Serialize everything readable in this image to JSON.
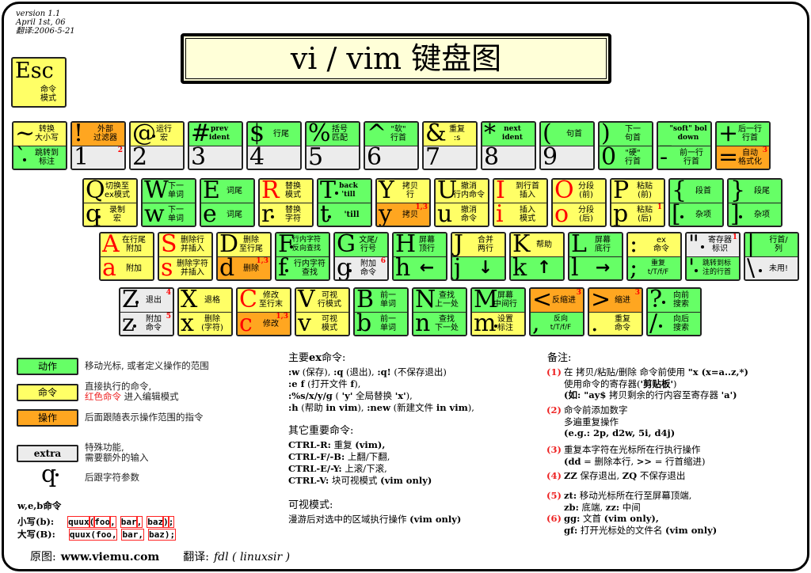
{
  "version": [
    "version 1.1",
    "April 1st, 06",
    "翻译:2006-5-21"
  ],
  "title": "vi / vim 键盘图",
  "colors": {
    "motion": "#66ff66",
    "command": "#ffff66",
    "operator": "#ffa620",
    "extra": "#ececec"
  },
  "esc": {
    "glyph": "Esc",
    "label": "命令\n模式",
    "color": "command"
  },
  "rows": [
    [
      {
        "upper": {
          "glyph": "~",
          "label": "转换\n大小写",
          "color": "command"
        },
        "lower": {
          "glyph": "`",
          "label": "跳转到\n标注",
          "color": "motion",
          "dot": true
        }
      },
      {
        "upper": {
          "glyph": "!",
          "label": "外部\n过滤器",
          "color": "operator"
        },
        "lower": {
          "glyph": "1",
          "label": "",
          "color": "extra",
          "note": "2"
        }
      },
      {
        "upper": {
          "glyph": "@",
          "label": "运行\n宏",
          "color": "command",
          "dot": true
        },
        "lower": {
          "glyph": "2",
          "label": "",
          "color": "extra"
        }
      },
      {
        "upper": {
          "glyph": "#",
          "label": "prev\nident",
          "color": "motion",
          "bold": true
        },
        "lower": {
          "glyph": "3",
          "label": "",
          "color": "extra"
        }
      },
      {
        "upper": {
          "glyph": "$",
          "label": "行尾",
          "color": "motion"
        },
        "lower": {
          "glyph": "4",
          "label": "",
          "color": "extra"
        }
      },
      {
        "upper": {
          "glyph": "%",
          "label": "括号\n匹配",
          "color": "motion"
        },
        "lower": {
          "glyph": "5",
          "label": "",
          "color": "extra"
        }
      },
      {
        "upper": {
          "glyph": "^",
          "label": "\"软\"\n行首",
          "color": "motion"
        },
        "lower": {
          "glyph": "6",
          "label": "",
          "color": "extra"
        }
      },
      {
        "upper": {
          "glyph": "&",
          "label": "重复\n:s",
          "color": "command"
        },
        "lower": {
          "glyph": "7",
          "label": "",
          "color": "extra"
        }
      },
      {
        "upper": {
          "glyph": "*",
          "label": "next\nident",
          "color": "motion",
          "bold": true
        },
        "lower": {
          "glyph": "8",
          "label": "",
          "color": "extra"
        }
      },
      {
        "upper": {
          "glyph": "(",
          "label": "句首",
          "color": "motion"
        },
        "lower": {
          "glyph": "9",
          "label": "",
          "color": "extra"
        }
      },
      {
        "upper": {
          "glyph": ")",
          "label": "下一\n句首",
          "color": "motion"
        },
        "lower": {
          "glyph": "0",
          "label": "\"硬\"\n行首",
          "color": "motion"
        }
      },
      {
        "upper": {
          "glyph": "_",
          "label": "\"soft\" bol\ndown",
          "color": "motion",
          "bold": true
        },
        "lower": {
          "glyph": "-",
          "label": "前一行\n行首",
          "color": "motion"
        }
      },
      {
        "upper": {
          "glyph": "+",
          "label": "后一行\n行首",
          "color": "motion"
        },
        "lower": {
          "glyph": "=",
          "label": "自动\n格式化",
          "color": "operator",
          "note": "3"
        }
      }
    ],
    [
      {
        "upper": {
          "glyph": "Q",
          "label": "切换至\nex模式",
          "color": "command"
        },
        "lower": {
          "glyph": "q",
          "label": "录制\n宏",
          "color": "command",
          "dot": true
        }
      },
      {
        "upper": {
          "glyph": "W",
          "label": "下一\n单词",
          "color": "motion"
        },
        "lower": {
          "glyph": "w",
          "label": "下一\n单词",
          "color": "motion"
        }
      },
      {
        "upper": {
          "glyph": "E",
          "label": "词尾",
          "color": "motion"
        },
        "lower": {
          "glyph": "e",
          "label": "词尾",
          "color": "motion"
        }
      },
      {
        "upper": {
          "glyph": "R",
          "label": "替换\n模式",
          "color": "command",
          "red": true
        },
        "lower": {
          "glyph": "r",
          "label": "替换\n字符",
          "color": "command",
          "dot": true
        }
      },
      {
        "upper": {
          "glyph": "T",
          "label": "back\n'till",
          "color": "motion",
          "dot": true,
          "bold": true
        },
        "lower": {
          "glyph": "t",
          "label": "'till",
          "color": "motion",
          "dot": true,
          "bold": true
        }
      },
      {
        "upper": {
          "glyph": "Y",
          "label": "拷贝\n行",
          "color": "command"
        },
        "lower": {
          "glyph": "y",
          "label": "拷贝",
          "color": "operator",
          "note": "1,3"
        }
      },
      {
        "upper": {
          "glyph": "U",
          "label": "撤消\n行内命令",
          "color": "command"
        },
        "lower": {
          "glyph": "u",
          "label": "撤消\n命令",
          "color": "command"
        }
      },
      {
        "upper": {
          "glyph": "I",
          "label": "到行首\n插入",
          "color": "command",
          "red": true
        },
        "lower": {
          "glyph": "i",
          "label": "插入\n模式",
          "color": "command",
          "red": true
        }
      },
      {
        "upper": {
          "glyph": "O",
          "label": "分段\n(前)",
          "color": "command",
          "red": true
        },
        "lower": {
          "glyph": "o",
          "label": "分段\n(后)",
          "color": "command",
          "red": true
        }
      },
      {
        "upper": {
          "glyph": "P",
          "label": "粘贴\n(前)",
          "color": "command"
        },
        "lower": {
          "glyph": "p",
          "label": "粘贴\n(后)",
          "color": "command",
          "note": "1"
        }
      },
      {
        "upper": {
          "glyph": "{",
          "label": "段首",
          "color": "motion"
        },
        "lower": {
          "glyph": "[",
          "label": "杂项",
          "color": "motion",
          "dot": true
        }
      },
      {
        "upper": {
          "glyph": "}",
          "label": "段尾",
          "color": "motion"
        },
        "lower": {
          "glyph": "]",
          "label": "杂项",
          "color": "motion",
          "dot": true
        }
      }
    ],
    [
      {
        "upper": {
          "glyph": "A",
          "label": "在行尾\n附加",
          "color": "command",
          "red": true
        },
        "lower": {
          "glyph": "a",
          "label": "附加",
          "color": "command",
          "red": true
        }
      },
      {
        "upper": {
          "glyph": "S",
          "label": "删除行\n并插入",
          "color": "command",
          "red": true
        },
        "lower": {
          "glyph": "s",
          "label": "删除字符\n并插入",
          "color": "command",
          "red": true
        }
      },
      {
        "upper": {
          "glyph": "D",
          "label": "删除\n至行尾",
          "color": "command"
        },
        "lower": {
          "glyph": "d",
          "label": "删除",
          "color": "operator",
          "note": "1,3"
        }
      },
      {
        "upper": {
          "glyph": "F",
          "label": "行内字符\n反向查找",
          "color": "motion",
          "dot": true
        },
        "lower": {
          "glyph": "f",
          "label": "行内字符\n查找",
          "color": "motion",
          "dot": true
        }
      },
      {
        "upper": {
          "glyph": "G",
          "label": "文尾/\n行号",
          "color": "motion"
        },
        "lower": {
          "glyph": "g",
          "label": "附加\n命令",
          "color": "extra",
          "dot": true,
          "note": "6"
        }
      },
      {
        "upper": {
          "glyph": "H",
          "label": "屏幕\n顶行",
          "color": "motion"
        },
        "lower": {
          "glyph": "h",
          "label": "←",
          "color": "motion",
          "arrow": true
        }
      },
      {
        "upper": {
          "glyph": "J",
          "label": "合并\n两行",
          "color": "command"
        },
        "lower": {
          "glyph": "j",
          "label": "↓",
          "color": "motion",
          "arrow": true
        }
      },
      {
        "upper": {
          "glyph": "K",
          "label": "帮助",
          "color": "command"
        },
        "lower": {
          "glyph": "k",
          "label": "↑",
          "color": "motion",
          "arrow": true
        }
      },
      {
        "upper": {
          "glyph": "L",
          "label": "屏幕\n底行",
          "color": "motion"
        },
        "lower": {
          "glyph": "l",
          "label": "→",
          "color": "motion",
          "arrow": true
        }
      },
      {
        "upper": {
          "glyph": ":",
          "label": "ex\n命令",
          "color": "command"
        },
        "lower": {
          "glyph": ";",
          "label": "重复\nt/T/f/F",
          "color": "motion"
        }
      },
      {
        "upper": {
          "glyph": "\"",
          "label": "寄存器\n标识",
          "color": "extra",
          "dot": true,
          "note": "1"
        },
        "lower": {
          "glyph": "'",
          "label": "跳转到标\n注的行首",
          "color": "motion",
          "dot": true
        }
      },
      {
        "upper": {
          "glyph": "|",
          "label": "行首/\n列",
          "color": "motion"
        },
        "lower": {
          "glyph": "\\",
          "label": "未用!",
          "color": "extra",
          "dot": true
        }
      }
    ],
    [
      {
        "upper": {
          "glyph": "Z",
          "label": "退出",
          "color": "extra",
          "dot": true,
          "note": "4"
        },
        "lower": {
          "glyph": "z",
          "label": "附加\n命令",
          "color": "extra",
          "dot": true,
          "note": "5"
        }
      },
      {
        "upper": {
          "glyph": "X",
          "label": "退格",
          "color": "command"
        },
        "lower": {
          "glyph": "x",
          "label": "删除\n(字符)",
          "color": "command"
        }
      },
      {
        "upper": {
          "glyph": "C",
          "label": "修改\n至行末",
          "color": "command",
          "red": true
        },
        "lower": {
          "glyph": "c",
          "label": "修改",
          "color": "operator",
          "red": true,
          "note": "1,3"
        }
      },
      {
        "upper": {
          "glyph": "V",
          "label": "可视\n行模式",
          "color": "command"
        },
        "lower": {
          "glyph": "v",
          "label": "可视\n模式",
          "color": "command"
        }
      },
      {
        "upper": {
          "glyph": "B",
          "label": "前一\n单词",
          "color": "motion"
        },
        "lower": {
          "glyph": "b",
          "label": "前一\n单词",
          "color": "motion"
        }
      },
      {
        "upper": {
          "glyph": "N",
          "label": "查找\n上一处",
          "color": "motion"
        },
        "lower": {
          "glyph": "n",
          "label": "查找\n下一处",
          "color": "motion"
        }
      },
      {
        "upper": {
          "glyph": "M",
          "label": "屏幕\n中间行",
          "color": "motion"
        },
        "lower": {
          "glyph": "m",
          "label": "设置\n标注",
          "color": "command",
          "dot": true
        }
      },
      {
        "upper": {
          "glyph": "<",
          "label": "反缩进",
          "color": "operator",
          "note": "3"
        },
        "lower": {
          "glyph": ",",
          "label": "反向\nt/T/f/F",
          "color": "motion"
        }
      },
      {
        "upper": {
          "glyph": ">",
          "label": "缩进",
          "color": "operator",
          "note": "3"
        },
        "lower": {
          "glyph": ".",
          "label": "重复\n命令",
          "color": "command"
        }
      },
      {
        "upper": {
          "glyph": "?",
          "label": "向前\n搜索",
          "color": "motion",
          "dot": true
        },
        "lower": {
          "glyph": "/",
          "label": "向后\n搜索",
          "color": "motion",
          "dot": true
        }
      }
    ]
  ],
  "legend": [
    {
      "box": "动作",
      "color": "motion",
      "desc": [
        "移动光标, 或者定义操作的范围"
      ]
    },
    {
      "box": "命令",
      "color": "command",
      "desc": [
        "直接执行的命令,"
      ],
      "red_desc": "红色命令",
      "desc_tail": " 进入编辑模式"
    },
    {
      "box": "操作",
      "color": "operator",
      "desc": [
        "后面跟随表示操作范围的指令"
      ]
    },
    {
      "box": "extra",
      "color": "extra",
      "desc": [
        "特殊功能,",
        "需要额外的输入"
      ]
    }
  ],
  "char_arg": {
    "glyph": "q",
    "desc": "后跟字符参数"
  },
  "web": {
    "title": "w,e,b命令",
    "lower_label": "小写(b):",
    "upper_label": "大写(B):",
    "lower_tokens": [
      "quux",
      "(",
      "foo",
      ",",
      "bar",
      ",",
      "baz",
      ")",
      ";"
    ],
    "upper_tokens": [
      "quux(foo,",
      "bar,",
      "baz);"
    ]
  },
  "footer": {
    "orig_label": "原图:",
    "orig_site": "www.viemu.com",
    "trans_label": "翻译:",
    "translator": "fdl ( linuxsir )"
  },
  "ex": {
    "title": [
      {
        "t": "主要"
      },
      {
        "t": "ex",
        "b": true
      },
      {
        "t": "命令:",
        "b": false
      }
    ],
    "lines": [
      [
        {
          "t": ":w",
          "b": true
        },
        {
          "t": " (保存), "
        },
        {
          "t": ":q",
          "b": true
        },
        {
          "t": " (退出), "
        },
        {
          "t": ":q!",
          "b": true
        },
        {
          "t": " (不保存退出)"
        }
      ],
      [
        {
          "t": ":e f",
          "b": true
        },
        {
          "t": " (打开文件 "
        },
        {
          "t": "f",
          "b": true
        },
        {
          "t": "),"
        }
      ],
      [
        {
          "t": ":%s/x/y/g",
          "b": true
        },
        {
          "t": " ( "
        },
        {
          "t": "'y'",
          "b": true
        },
        {
          "t": " 全局替换 "
        },
        {
          "t": "'x'",
          "b": true
        },
        {
          "t": "),"
        }
      ],
      [
        {
          "t": ":h",
          "b": true
        },
        {
          "t": " (帮助 "
        },
        {
          "t": "in vim",
          "b": true
        },
        {
          "t": "), "
        },
        {
          "t": ":new",
          "b": true
        },
        {
          "t": " (新建文件 "
        },
        {
          "t": "in vim",
          "b": true
        },
        {
          "t": "),"
        }
      ]
    ]
  },
  "other": {
    "title": "其它重要命令:",
    "lines": [
      [
        {
          "t": "CTRL-R:",
          "b": true
        },
        {
          "t": " 重复 "
        },
        {
          "t": "(vim),",
          "b": true
        }
      ],
      [
        {
          "t": "CTRL-F/-B:",
          "b": true
        },
        {
          "t": " 上翻/下翻,"
        }
      ],
      [
        {
          "t": "CTRL-E/-Y:",
          "b": true
        },
        {
          "t": " 上滚/下滚,"
        }
      ],
      [
        {
          "t": "CTRL-V:",
          "b": true
        },
        {
          "t": " 块可视模式 "
        },
        {
          "t": "(vim only)",
          "b": true
        }
      ]
    ]
  },
  "visual": {
    "title": "可视模式:",
    "lines": [
      [
        {
          "t": "漫游后对选中的区域执行操作 "
        },
        {
          "t": "(vim only)",
          "b": true
        }
      ]
    ]
  },
  "notes": {
    "title": "备注:",
    "items": [
      {
        "num": "(1)",
        "lines": [
          [
            {
              "t": "在 拷贝/粘贴/删除 命令前使用 "
            },
            {
              "t": "\"x (x=a..z,*)",
              "b": true
            }
          ],
          [
            {
              "t": "使用命令的寄存器("
            },
            {
              "t": "'剪贴板'",
              "b": true
            },
            {
              "t": ")"
            }
          ],
          [
            {
              "t": "(如: ",
              "b": true
            },
            {
              "t": "\"ay$",
              "b": true
            },
            {
              "t": " 拷贝剩余的行内容至寄存器 "
            },
            {
              "t": "'a')",
              "b": true
            }
          ]
        ]
      },
      {
        "num": "(2)",
        "lines": [
          [
            {
              "t": "命令前添加数字"
            }
          ],
          [
            {
              "t": "多遍重复操作"
            }
          ],
          [
            {
              "t": "(e.g.: 2p, d2w, 5i, d4j)",
              "b": true
            }
          ]
        ]
      },
      {
        "num": "(3)",
        "lines": [
          [
            {
              "t": "重复本字符在光标所在行执行操作"
            }
          ],
          [
            {
              "t": "(dd",
              "b": true
            },
            {
              "t": " = 删除本行, "
            },
            {
              "t": ">>",
              "b": true
            },
            {
              "t": " = 行首缩进)"
            }
          ]
        ]
      },
      {
        "num": "(4)",
        "lines": [
          [
            {
              "t": "ZZ",
              "b": true
            },
            {
              "t": " 保存退出, "
            },
            {
              "t": "ZQ",
              "b": true
            },
            {
              "t": " 不保存退出"
            }
          ]
        ]
      },
      {
        "num": "(5)",
        "lines": [
          [
            {
              "t": "zt:",
              "b": true
            },
            {
              "t": " 移动光标所在行至屏幕顶端,"
            }
          ],
          [
            {
              "t": "zb:",
              "b": true
            },
            {
              "t": " 底端, "
            },
            {
              "t": "zz:",
              "b": true
            },
            {
              "t": " 中间"
            }
          ]
        ]
      },
      {
        "num": "(6)",
        "lines": [
          [
            {
              "t": "gg:",
              "b": true
            },
            {
              "t": " 文首 "
            },
            {
              "t": "(vim only),",
              "b": true
            }
          ],
          [
            {
              "t": "gf:",
              "b": true
            },
            {
              "t": " 打开光标处的文件名 "
            },
            {
              "t": "(vim only)",
              "b": true
            }
          ]
        ]
      }
    ]
  }
}
